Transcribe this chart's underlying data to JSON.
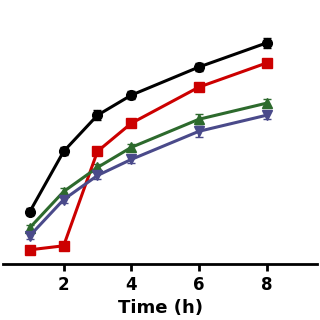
{
  "x": [
    1,
    2,
    3,
    4,
    6,
    8
  ],
  "series": [
    {
      "label": "Black",
      "color": "#000000",
      "marker": "o",
      "y": [
        1.0,
        2.5,
        3.4,
        3.9,
        4.6,
        5.2
      ],
      "yerr": [
        0.08,
        0.1,
        0.12,
        0.1,
        0.1,
        0.12
      ]
    },
    {
      "label": "Red",
      "color": "#cc0000",
      "marker": "s",
      "y": [
        0.05,
        0.15,
        2.5,
        3.2,
        4.1,
        4.7
      ],
      "yerr": [
        0.05,
        0.05,
        0.1,
        0.09,
        0.1,
        0.11
      ]
    },
    {
      "label": "Green",
      "color": "#2d6a2d",
      "marker": "^",
      "y": [
        0.6,
        1.5,
        2.1,
        2.6,
        3.3,
        3.7
      ],
      "yerr": [
        0.07,
        0.08,
        0.09,
        0.09,
        0.12,
        0.1
      ]
    },
    {
      "label": "Purple",
      "color": "#4a4a8a",
      "marker": "v",
      "y": [
        0.4,
        1.3,
        1.9,
        2.3,
        3.0,
        3.4
      ],
      "yerr": [
        0.07,
        0.09,
        0.09,
        0.09,
        0.13,
        0.1
      ]
    }
  ],
  "xlabel": "Time (h)",
  "xlabel_fontsize": 13,
  "xticks": [
    2,
    4,
    6,
    8
  ],
  "xlim": [
    0.2,
    9.5
  ],
  "ylim": [
    -0.3,
    6.2
  ],
  "linewidth": 2.2,
  "markersize": 7,
  "capsize": 3,
  "elinewidth": 1.5,
  "background_color": "#ffffff"
}
